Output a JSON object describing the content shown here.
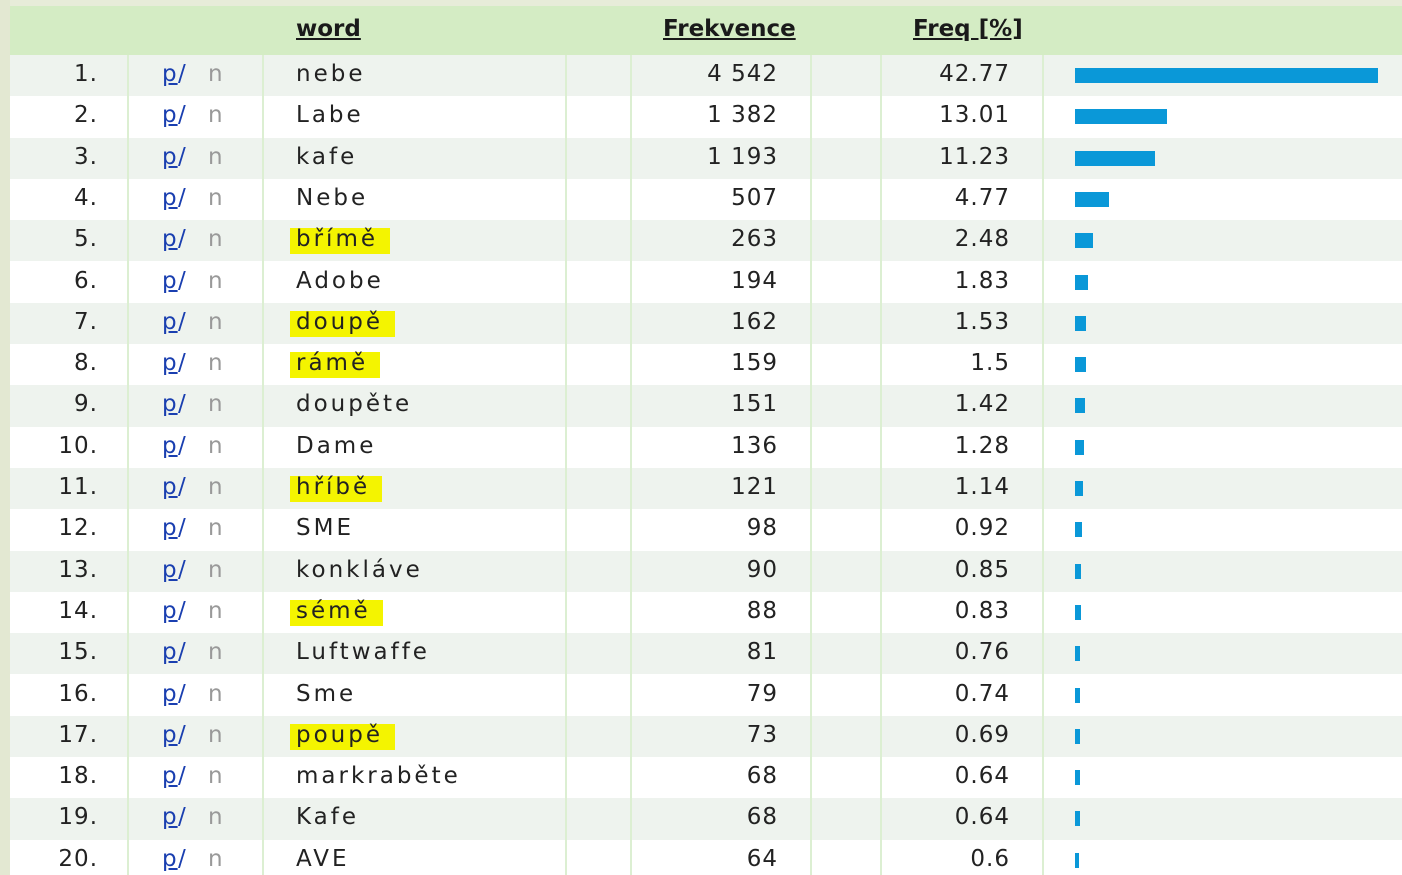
{
  "table": {
    "columns": [
      "word",
      "Frekvence",
      "Freq [%]"
    ],
    "link_labels": {
      "p": "p",
      "slash": "/",
      "n": "n"
    },
    "rows": [
      {
        "rank": "1.",
        "word": "nebe",
        "freq": "4 542",
        "percent": 42.77,
        "highlight": false
      },
      {
        "rank": "2.",
        "word": "Labe",
        "freq": "1 382",
        "percent": 13.01,
        "highlight": false
      },
      {
        "rank": "3.",
        "word": "kafe",
        "freq": "1 193",
        "percent": 11.23,
        "highlight": false
      },
      {
        "rank": "4.",
        "word": "Nebe",
        "freq": "507",
        "percent": 4.77,
        "highlight": false
      },
      {
        "rank": "5.",
        "word": "břímě",
        "freq": "263",
        "percent": 2.48,
        "highlight": true
      },
      {
        "rank": "6.",
        "word": "Adobe",
        "freq": "194",
        "percent": 1.83,
        "highlight": false
      },
      {
        "rank": "7.",
        "word": "doupě",
        "freq": "162",
        "percent": 1.53,
        "highlight": true
      },
      {
        "rank": "8.",
        "word": "rámě",
        "freq": "159",
        "percent": 1.5,
        "highlight": true
      },
      {
        "rank": "9.",
        "word": "doupěte",
        "freq": "151",
        "percent": 1.42,
        "highlight": false
      },
      {
        "rank": "10.",
        "word": "Dame",
        "freq": "136",
        "percent": 1.28,
        "highlight": false
      },
      {
        "rank": "11.",
        "word": "hříbě",
        "freq": "121",
        "percent": 1.14,
        "highlight": true
      },
      {
        "rank": "12.",
        "word": "SME",
        "freq": "98",
        "percent": 0.92,
        "highlight": false
      },
      {
        "rank": "13.",
        "word": "konkláve",
        "freq": "90",
        "percent": 0.85,
        "highlight": false
      },
      {
        "rank": "14.",
        "word": "sémě",
        "freq": "88",
        "percent": 0.83,
        "highlight": true
      },
      {
        "rank": "15.",
        "word": "Luftwaffe",
        "freq": "81",
        "percent": 0.76,
        "highlight": false
      },
      {
        "rank": "16.",
        "word": "Sme",
        "freq": "79",
        "percent": 0.74,
        "highlight": false
      },
      {
        "rank": "17.",
        "word": "poupě",
        "freq": "73",
        "percent": 0.69,
        "highlight": true
      },
      {
        "rank": "18.",
        "word": "markraběte",
        "freq": "68",
        "percent": 0.64,
        "highlight": false
      },
      {
        "rank": "19.",
        "word": "Kafe",
        "freq": "68",
        "percent": 0.64,
        "highlight": false
      },
      {
        "rank": "20.",
        "word": "AVE",
        "freq": "64",
        "percent": 0.6,
        "highlight": false
      }
    ]
  }
}
